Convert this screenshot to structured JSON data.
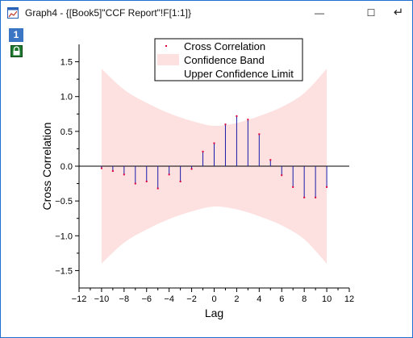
{
  "window": {
    "title": "Graph4 - {[Book5]\"CCF Report\"!F[1:1]}",
    "layer_number": "1",
    "icons": {
      "app": "graph-icon",
      "minimize": "minimize-icon",
      "maximize": "maximize-icon",
      "restore": "restore-arrow-icon",
      "lock": "lock-icon"
    },
    "minimize_glyph": "—",
    "maximize_glyph": "☐",
    "restore_glyph": "↵"
  },
  "chart_data": {
    "type": "bar",
    "title": "",
    "xlabel": "Lag",
    "ylabel": "Cross Correlation",
    "xlim": [
      -12,
      12
    ],
    "ylim": [
      -1.75,
      1.75
    ],
    "x_ticks": [
      -12,
      -10,
      -8,
      -6,
      -4,
      -2,
      0,
      2,
      4,
      6,
      8,
      10,
      12
    ],
    "x_tick_labels": [
      "−12",
      "−10",
      "−8",
      "−6",
      "−4",
      "−2",
      "0",
      "2",
      "4",
      "6",
      "8",
      "10",
      "12"
    ],
    "y_ticks": [
      -1.5,
      -1.0,
      -0.5,
      0.0,
      0.5,
      1.0,
      1.5
    ],
    "y_tick_labels": [
      "−1.5",
      "−1.0",
      "−0.5",
      "0.0",
      "0.5",
      "1.0",
      "1.5"
    ],
    "grid": false,
    "legend": {
      "placement": "top-center",
      "entries": [
        "Cross Correlation",
        "Confidence Band",
        "Upper Confidence Limit"
      ]
    },
    "colors": {
      "stem": "#1a1aa8",
      "marker": "#e0003c",
      "band": "#fde0e0",
      "axis": "#000000"
    },
    "lags": [
      -10,
      -9,
      -8,
      -7,
      -6,
      -5,
      -4,
      -3,
      -2,
      -1,
      0,
      1,
      2,
      3,
      4,
      5,
      6,
      7,
      8,
      9,
      10
    ],
    "values": [
      -0.03,
      -0.07,
      -0.12,
      -0.25,
      -0.22,
      -0.32,
      -0.12,
      -0.22,
      -0.04,
      0.21,
      0.33,
      0.6,
      0.72,
      0.67,
      0.46,
      0.09,
      -0.13,
      -0.3,
      -0.45,
      -0.45,
      -0.3
    ],
    "confidence_band": {
      "lags": [
        -10,
        -8,
        -6,
        -4,
        -2,
        0,
        2,
        4,
        6,
        8,
        10
      ],
      "upper": [
        1.4,
        1.1,
        0.91,
        0.76,
        0.65,
        0.58,
        0.62,
        0.72,
        0.85,
        1.05,
        1.4
      ],
      "lower": [
        -1.4,
        -1.1,
        -0.91,
        -0.76,
        -0.65,
        -0.58,
        -0.62,
        -0.72,
        -0.85,
        -1.05,
        -1.4
      ]
    }
  }
}
